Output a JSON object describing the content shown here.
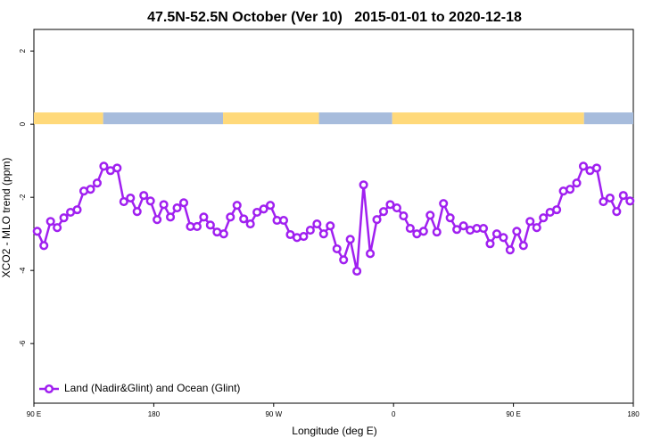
{
  "chart_data": {
    "type": "line",
    "title": "47.5N-52.5N October (Ver 10)   2015-01-01 to 2020-12-18",
    "x_label": "Longitude (deg E)",
    "y_label": "XCO2 - MLO trend (ppm)",
    "xlim": [
      90,
      540
    ],
    "ylim": [
      -7.63,
      2.59
    ],
    "xticks": [
      {
        "value": 90,
        "label": "90 E"
      },
      {
        "value": 180,
        "label": "180"
      },
      {
        "value": 270,
        "label": "90 W"
      },
      {
        "value": 360,
        "label": "0"
      },
      {
        "value": 450,
        "label": "90 E"
      },
      {
        "value": 540,
        "label": "180"
      }
    ],
    "yticks": [
      2,
      0,
      -2,
      -4,
      -6
    ],
    "legend": "bottomleft",
    "band": {
      "ylim": [
        0,
        0.32
      ],
      "segments": [
        {
          "start": 90,
          "end": 142,
          "color": "#ffd97a"
        },
        {
          "start": 142,
          "end": 232,
          "color": "#a7bcdc"
        },
        {
          "start": 232,
          "end": 304,
          "color": "#ffd97a"
        },
        {
          "start": 304,
          "end": 359,
          "color": "#a7bcdc"
        },
        {
          "start": 359,
          "end": 503,
          "color": "#ffd97a"
        },
        {
          "start": 503,
          "end": 540,
          "color": "#a7bcdc"
        }
      ]
    },
    "x": [
      92.5,
      97.5,
      102.5,
      107.5,
      112.5,
      117.5,
      122.5,
      127.5,
      132.5,
      137.5,
      142.5,
      147.5,
      152.5,
      157.5,
      162.5,
      167.5,
      172.5,
      177.5,
      182.5,
      187.5,
      192.5,
      197.5,
      202.5,
      207.5,
      212.5,
      217.5,
      222.5,
      227.5,
      232.5,
      237.5,
      242.5,
      247.5,
      252.5,
      257.5,
      262.5,
      267.5,
      272.5,
      277.5,
      282.5,
      287.5,
      292.5,
      297.5,
      302.5,
      307.5,
      312.5,
      317.5,
      322.5,
      327.5,
      332.5,
      337.5,
      342.5,
      347.5,
      352.5,
      357.5,
      362.5,
      367.5,
      372.5,
      377.5,
      382.5,
      387.5,
      392.5,
      397.5,
      402.5,
      407.5,
      412.5,
      417.5,
      422.5,
      427.5,
      432.5,
      437.5,
      442.5,
      447.5,
      452.5,
      457.5,
      462.5,
      467.5,
      472.5,
      477.5,
      482.5,
      487.5,
      492.5,
      497.5,
      502.5,
      507.5,
      512.5,
      517.5,
      522.5,
      527.5,
      532.5,
      537.5
    ],
    "series": [
      {
        "name": "Land (Nadir&Glint) and Ocean (Glint)",
        "color": "#a020f0",
        "values": [
          -2.93,
          -3.32,
          -2.66,
          -2.83,
          -2.56,
          -2.41,
          -2.34,
          -1.83,
          -1.78,
          -1.61,
          -1.15,
          -1.27,
          -1.2,
          -2.12,
          -2.02,
          -2.39,
          -1.95,
          -2.1,
          -2.61,
          -2.2,
          -2.54,
          -2.29,
          -2.15,
          -2.8,
          -2.8,
          -2.54,
          -2.76,
          -2.95,
          -3.0,
          -2.54,
          -2.22,
          -2.59,
          -2.73,
          -2.41,
          -2.32,
          -2.22,
          -2.63,
          -2.63,
          -3.02,
          -3.1,
          -3.07,
          -2.9,
          -2.73,
          -3.0,
          -2.78,
          -3.41,
          -3.71,
          -3.15,
          -4.02,
          -1.66,
          -3.54,
          -2.61,
          -2.39,
          -2.2,
          -2.29,
          -2.51,
          -2.85,
          -3.0,
          -2.93,
          -2.49,
          -2.95,
          -2.17,
          -2.56,
          -2.88,
          -2.78,
          -2.9,
          -2.85,
          -2.85,
          -3.27,
          -3.0,
          -3.1,
          -3.44,
          -2.93,
          -3.32,
          -2.66,
          -2.83,
          -2.56,
          -2.41,
          -2.34,
          -1.83,
          -1.78,
          -1.61,
          -1.15,
          -1.27,
          -1.2,
          -2.12,
          -2.02,
          -2.39,
          -1.95,
          -2.1
        ]
      }
    ]
  }
}
